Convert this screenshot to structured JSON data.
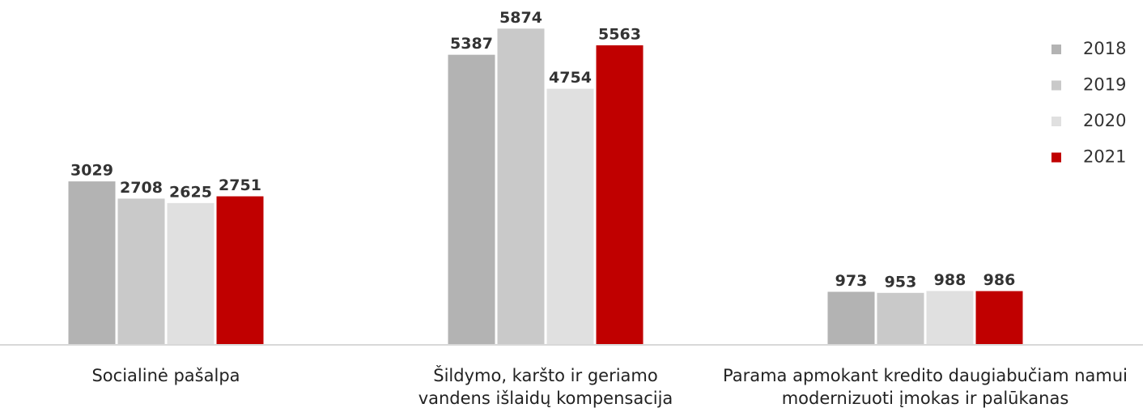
{
  "chart_data": {
    "type": "bar",
    "categories": [
      "Socialinė pašalpa",
      "Šildymo, karšto ir geriamo vandens išlaidų kompensacija",
      "Parama apmokant kredito daugiabučiam namui modernizuoti įmokas ir palūkanas"
    ],
    "series": [
      {
        "name": "2018",
        "color": "#b3b3b3",
        "values": [
          3029,
          5387,
          973
        ]
      },
      {
        "name": "2019",
        "color": "#c9c9c9",
        "values": [
          2708,
          5874,
          953
        ]
      },
      {
        "name": "2020",
        "color": "#e0e0e0",
        "values": [
          2625,
          4754,
          988
        ]
      },
      {
        "name": "2021",
        "color": "#c00000",
        "values": [
          2751,
          5563,
          986
        ]
      }
    ],
    "ylim": [
      0,
      6000
    ],
    "legend": "right"
  }
}
